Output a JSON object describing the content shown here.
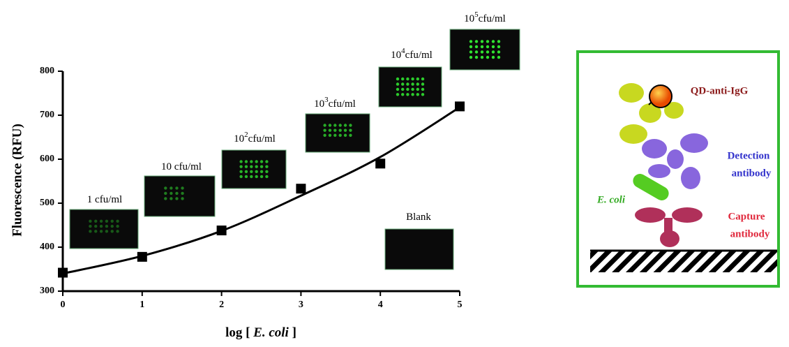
{
  "chart_data": {
    "type": "scatter",
    "ylabel": "Fluorescence (RFU)",
    "xlabel": [
      "log [",
      "E. coli",
      "]"
    ],
    "x": [
      0,
      1,
      2,
      3,
      4,
      5
    ],
    "values": [
      342,
      378,
      438,
      533,
      590,
      720
    ],
    "curve": [
      340,
      380,
      437,
      517,
      605,
      718
    ],
    "color": "#000000",
    "xlim": [
      0,
      5
    ],
    "xticks": [
      0,
      1,
      2,
      3,
      4,
      5
    ],
    "ylim": [
      300,
      800
    ],
    "yticks": [
      300,
      400,
      500,
      600,
      700,
      800
    ],
    "annotations": [
      {
        "text": "1  cfu/ml"
      },
      {
        "text": "10  cfu/ml"
      },
      {
        "text": "10",
        "sup": "2",
        "unit": "cfu/ml"
      },
      {
        "text": "10",
        "sup": "3",
        "unit": "cfu/ml"
      },
      {
        "text": "10",
        "sup": "4",
        "unit": "cfu/ml"
      },
      {
        "text": "10",
        "sup": "5",
        "unit": "cfu/ml"
      },
      {
        "text": "Blank"
      }
    ]
  },
  "diagram": {
    "qd": "QD-anti-IgG",
    "detection": [
      "Detection",
      "antibody"
    ],
    "ecoli": "E. coli",
    "capture": [
      "Capture",
      "antibody"
    ]
  }
}
